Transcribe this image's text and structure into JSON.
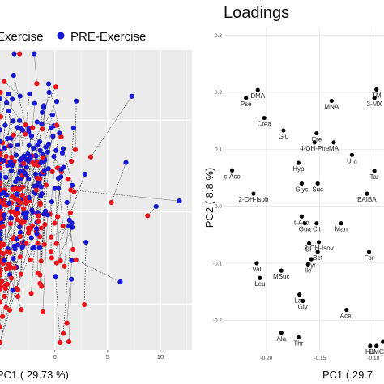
{
  "left_panel": {
    "legend": [
      {
        "label": "Exercise",
        "color": "#e8141c"
      },
      {
        "label": "PRE-Exercise",
        "color": "#1818d0"
      }
    ],
    "xlabel": "PC1 ( 29.73 %)",
    "x_ticks": [
      0,
      5,
      10
    ]
  },
  "right_panel": {
    "title": "Loadings",
    "xlabel": "PC1 ( 29.7",
    "ylabel": "PC2 ( 8.8 %)"
  },
  "chart_data": [
    {
      "type": "scatter",
      "title": "",
      "xlabel": "PC1 ( 29.73 %)",
      "ylabel": "",
      "xlim": [
        -5.2,
        13
      ],
      "ylim": [
        -7.5,
        8.8
      ],
      "x_ticks": [
        0,
        5,
        10
      ],
      "grid": true,
      "legend": "top",
      "series": [
        {
          "name": "Exercise",
          "color": "#e8141c"
        },
        {
          "name": "PRE-Exercise",
          "color": "#1818d0"
        }
      ],
      "paired_lines": true,
      "notable_points": [
        {
          "series": "PRE-Exercise",
          "x": 11.8,
          "y": 0.6
        },
        {
          "series": "PRE-Exercise",
          "x": 9.6,
          "y": 0.3
        },
        {
          "series": "PRE-Exercise",
          "x": 7.3,
          "y": 6.3
        },
        {
          "series": "PRE-Exercise",
          "x": 6.2,
          "y": -3.8
        },
        {
          "series": "Exercise",
          "x": 8.8,
          "y": -0.2
        },
        {
          "series": "Exercise",
          "x": 0.8,
          "y": -6.6
        }
      ]
    },
    {
      "type": "scatter",
      "title": "Loadings",
      "xlabel": "PC1 ( 29.7",
      "ylabel": "PC2 ( 8.8 %)",
      "xlim": [
        -0.24,
        -0.09
      ],
      "ylim": [
        -0.255,
        0.315
      ],
      "x_ticks": [
        -0.2,
        -0.15,
        -0.1
      ],
      "x_tick_labels": [
        "-0.20",
        "-0.15",
        "-0.10"
      ],
      "y_ticks": [
        -0.2,
        -0.1,
        0.0,
        0.1,
        0.2,
        0.3
      ],
      "y_tick_labels": [
        "-0.2",
        "-0.1",
        "0.0",
        "0.1",
        "0.2",
        "0.3"
      ],
      "grid": true,
      "points": [
        {
          "label": "DMA",
          "x": -0.208,
          "y": 0.204
        },
        {
          "label": "Pse",
          "x": -0.219,
          "y": 0.19
        },
        {
          "label": "Crea",
          "x": -0.202,
          "y": 0.155
        },
        {
          "label": "MNA",
          "x": -0.139,
          "y": 0.185
        },
        {
          "label": "TM",
          "x": -0.097,
          "y": 0.205
        },
        {
          "label": "3-MX",
          "x": -0.099,
          "y": 0.19
        },
        {
          "label": "Glu",
          "x": -0.184,
          "y": 0.133
        },
        {
          "label": "Cre",
          "x": -0.153,
          "y": 0.128
        },
        {
          "label": "4-OH-Phe",
          "x": -0.155,
          "y": 0.112
        },
        {
          "label": "MA",
          "x": -0.137,
          "y": 0.112
        },
        {
          "label": "Ura",
          "x": -0.12,
          "y": 0.09
        },
        {
          "label": "Hyp",
          "x": -0.17,
          "y": 0.076
        },
        {
          "label": "c-Aco",
          "x": -0.232,
          "y": 0.063
        },
        {
          "label": "Tar",
          "x": -0.099,
          "y": 0.062
        },
        {
          "label": "Glyc",
          "x": -0.167,
          "y": 0.04
        },
        {
          "label": "Suc",
          "x": -0.152,
          "y": 0.04
        },
        {
          "label": "2-OH-Isob",
          "x": -0.212,
          "y": 0.022
        },
        {
          "label": "BAIBA",
          "x": -0.106,
          "y": 0.022
        },
        {
          "label": "t-Aco",
          "x": -0.167,
          "y": -0.018
        },
        {
          "label": "Gua",
          "x": -0.164,
          "y": -0.03
        },
        {
          "label": "Cit",
          "x": -0.153,
          "y": -0.03
        },
        {
          "label": "Man",
          "x": -0.13,
          "y": -0.03
        },
        {
          "label": "3-OH-Isov",
          "x": -0.151,
          "y": -0.063
        },
        {
          "label": "Cl-",
          "x": -0.16,
          "y": -0.065
        },
        {
          "label": "Bet",
          "x": -0.152,
          "y": -0.08
        },
        {
          "label": "For",
          "x": -0.104,
          "y": -0.08
        },
        {
          "label": "Tyr",
          "x": -0.158,
          "y": -0.093
        },
        {
          "label": "Val",
          "x": -0.209,
          "y": -0.1
        },
        {
          "label": "Ile",
          "x": -0.161,
          "y": -0.102
        },
        {
          "label": "MSuc",
          "x": -0.186,
          "y": -0.113
        },
        {
          "label": "Leu",
          "x": -0.206,
          "y": -0.126
        },
        {
          "label": "Lac",
          "x": -0.169,
          "y": -0.155
        },
        {
          "label": "Gly",
          "x": -0.166,
          "y": -0.166
        },
        {
          "label": "Acet",
          "x": -0.125,
          "y": -0.182
        },
        {
          "label": "Ala",
          "x": -0.186,
          "y": -0.222
        },
        {
          "label": "Thr",
          "x": -0.17,
          "y": -0.23
        },
        {
          "label": "His",
          "x": -0.103,
          "y": -0.245
        },
        {
          "label": "DMG",
          "x": -0.097,
          "y": -0.245
        },
        {
          "label": "",
          "x": -0.091,
          "y": -0.238
        }
      ]
    }
  ]
}
